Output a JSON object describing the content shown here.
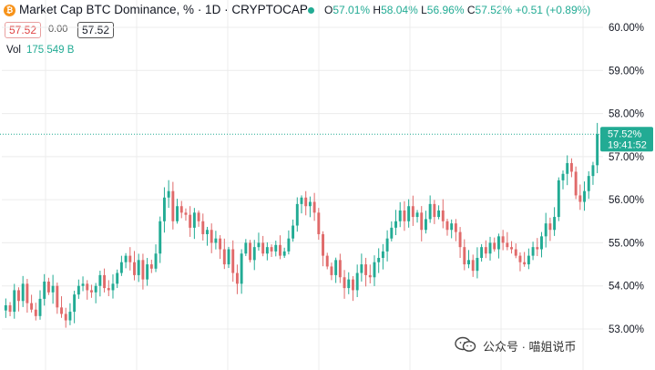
{
  "header": {
    "coin_glyph": "₿",
    "title": "Market Cap BTC Dominance, % · 1D · CRYPTOCAP",
    "ohlc": {
      "o_key": "O",
      "o_val": "57.01%",
      "h_key": "H",
      "h_val": "58.04%",
      "l_key": "L",
      "l_val": "56.96%",
      "c_key": "C",
      "c_val": "57.52%",
      "change": "+0.51 (+0.89%)"
    }
  },
  "trade": {
    "sell": "57.52",
    "spread": "0.00",
    "buy": "57.52"
  },
  "volume": {
    "label": "Vol",
    "value": "175.549 B"
  },
  "price_tag": {
    "price": "57.52%",
    "countdown": "19:41:52"
  },
  "watermark": {
    "text": "公众号 · 喵姐说币"
  },
  "colors": {
    "up": "#22ab94",
    "down": "#e06a6a",
    "grid": "#ececec",
    "accent": "#22ab94"
  },
  "chart_data": {
    "type": "candlestick",
    "y_unit": "%",
    "ylim": [
      52.95,
      60.2
    ],
    "y_ticks": [
      "53.00%",
      "54.00%",
      "55.00%",
      "56.00%",
      "57.00%",
      "58.00%",
      "59.00%",
      "60.00%"
    ],
    "y_tick_values": [
      53,
      54,
      55,
      56,
      57,
      58,
      59,
      60
    ],
    "last_price": 57.52,
    "grid": true,
    "closes": [
      53.55,
      53.4,
      53.9,
      53.65,
      54.05,
      53.6,
      53.45,
      53.3,
      53.7,
      54.1,
      53.85,
      54.0,
      53.5,
      53.35,
      53.2,
      53.4,
      53.8,
      54.0,
      54.05,
      53.9,
      53.85,
      54.0,
      54.25,
      53.95,
      53.9,
      54.05,
      54.3,
      54.55,
      54.7,
      54.55,
      54.25,
      54.6,
      54.15,
      54.5,
      54.4,
      54.75,
      55.5,
      56.05,
      56.2,
      55.5,
      55.85,
      55.7,
      55.65,
      55.35,
      55.7,
      55.5,
      55.2,
      55.3,
      55.0,
      55.1,
      54.85,
      54.5,
      54.85,
      54.3,
      54.05,
      54.75,
      55.0,
      54.6,
      54.9,
      55.0,
      54.75,
      54.9,
      54.8,
      54.95,
      54.7,
      54.8,
      55.1,
      55.4,
      55.9,
      56.05,
      55.85,
      55.95,
      55.7,
      55.2,
      54.7,
      54.45,
      54.25,
      54.6,
      54.2,
      53.95,
      54.15,
      53.9,
      54.3,
      54.5,
      54.25,
      54.2,
      54.55,
      54.65,
      54.8,
      55.1,
      55.35,
      55.5,
      55.75,
      55.5,
      55.85,
      55.6,
      55.7,
      55.3,
      55.55,
      55.9,
      55.6,
      55.75,
      55.5,
      55.3,
      55.45,
      55.25,
      54.9,
      54.5,
      54.6,
      54.35,
      54.65,
      54.9,
      54.75,
      55.0,
      54.85,
      55.15,
      55.0,
      54.9,
      54.85,
      54.7,
      54.55,
      54.5,
      54.7,
      54.9,
      54.85,
      55.15,
      55.45,
      55.3,
      55.6,
      56.45,
      56.6,
      56.85,
      56.65,
      56.1,
      55.95,
      56.2,
      56.55,
      56.8,
      57.52
    ]
  }
}
